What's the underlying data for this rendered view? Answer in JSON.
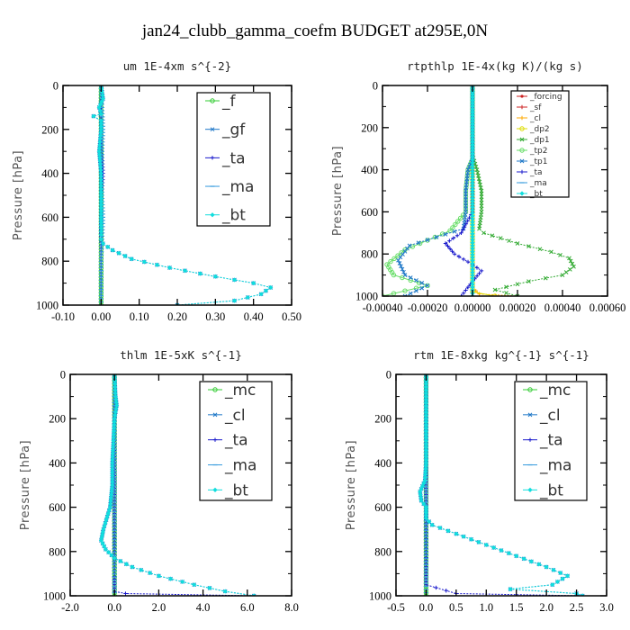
{
  "figure": {
    "title": "jan24_clubb_gamma_coefm  BUDGET at295E,0N"
  },
  "chart_data": [
    {
      "type": "line",
      "title": "um   1E-4xm s^{-2}",
      "ylabel": "Pressure [hPa]",
      "xlim": [
        -0.1,
        0.5
      ],
      "ylim": [
        1000,
        0
      ],
      "xticks": [
        "-0.10",
        "0.00",
        "0.10",
        "0.20",
        "0.30",
        "0.40",
        "0.50"
      ],
      "xtick_values": [
        -0.1,
        0.0,
        0.1,
        0.2,
        0.3,
        0.4,
        0.5
      ],
      "yticks": [
        "0",
        "200",
        "400",
        "600",
        "800",
        "1000"
      ],
      "ytick_values": [
        0,
        200,
        400,
        600,
        800,
        1000
      ],
      "legend_size": "large",
      "series": [
        {
          "name": "_f",
          "color": "#33cc33",
          "marker": "circle",
          "x": [
            0,
            0
          ],
          "y": [
            0,
            1000
          ]
        },
        {
          "name": "_gf",
          "color": "#1f78c8",
          "marker": "cross",
          "x": [
            0.0,
            0.005,
            -0.005,
            0.0,
            -0.02,
            0.0,
            0.0,
            -0.005,
            0.0,
            0.0,
            0.0,
            0.0,
            0.0,
            0.0,
            0.005,
            0.03,
            0.08,
            0.18,
            0.3,
            0.4,
            0.445,
            0.42,
            0.35,
            0.2
          ],
          "y": [
            0,
            60,
            100,
            130,
            140,
            160,
            200,
            300,
            400,
            500,
            600,
            650,
            680,
            700,
            720,
            750,
            790,
            830,
            870,
            900,
            920,
            950,
            980,
            1000
          ]
        },
        {
          "name": "_ta",
          "color": "#1a1acc",
          "marker": "plus",
          "x": [
            0,
            0,
            0.005,
            0,
            0,
            0
          ],
          "y": [
            0,
            200,
            400,
            600,
            800,
            1000
          ]
        },
        {
          "name": "_ma",
          "color": "#3399dd",
          "marker": "dash",
          "x": [
            0,
            0.005,
            0,
            0.005,
            0,
            0
          ],
          "y": [
            0,
            200,
            400,
            600,
            800,
            1000
          ]
        },
        {
          "name": "_bt",
          "color": "#11dddd",
          "marker": "diamond",
          "x": [
            0.0,
            0.005,
            -0.005,
            0.0,
            -0.02,
            0.0,
            0.0,
            -0.005,
            0.0,
            0.0,
            0.0,
            0.0,
            0.0,
            0.0,
            0.005,
            0.03,
            0.08,
            0.18,
            0.3,
            0.4,
            0.445,
            0.42,
            0.35,
            0.2
          ],
          "y": [
            0,
            60,
            100,
            130,
            140,
            160,
            200,
            300,
            400,
            500,
            600,
            650,
            680,
            700,
            720,
            750,
            790,
            830,
            870,
            900,
            920,
            950,
            980,
            1000
          ]
        }
      ]
    },
    {
      "type": "line",
      "title": "rtpthlp   1E-4x(kg K)/(kg s)",
      "ylabel": "Pressure [hPa]",
      "xlim": [
        -0.0004,
        0.0006
      ],
      "ylim": [
        1000,
        0
      ],
      "xticks": [
        "-0.00040",
        "-0.00020",
        "0.00000",
        "0.00020",
        "0.00040",
        "0.00060"
      ],
      "xtick_values": [
        -0.0004,
        -0.0002,
        0.0,
        0.0002,
        0.0004,
        0.0006
      ],
      "yticks": [
        "0",
        "200",
        "400",
        "600",
        "800",
        "1000"
      ],
      "ytick_values": [
        0,
        200,
        400,
        600,
        800,
        1000
      ],
      "legend_size": "small",
      "series": [
        {
          "name": "_forcing",
          "color": "#cc2222",
          "marker": "dot",
          "x": [
            0,
            0
          ],
          "y": [
            0,
            1000
          ]
        },
        {
          "name": "_sf",
          "color": "#cc2222",
          "marker": "plus",
          "x": [
            0,
            0
          ],
          "y": [
            0,
            1000
          ]
        },
        {
          "name": "_cl",
          "color": "#ffaa00",
          "marker": "plus",
          "x": [
            0,
            0,
            0,
            3e-05,
            0.0002
          ],
          "y": [
            0,
            900,
            960,
            990,
            1000
          ]
        },
        {
          "name": "_dp2",
          "color": "#dddd00",
          "marker": "circle",
          "x": [
            0,
            0,
            0.0001
          ],
          "y": [
            0,
            980,
            1000
          ]
        },
        {
          "name": "_dp1",
          "color": "#33aa33",
          "marker": "cross",
          "x": [
            0,
            0,
            2e-05,
            4e-05,
            4e-05,
            3e-05,
            5e-05,
            0.0002,
            0.00035,
            0.00043,
            0.00045,
            0.0004,
            0.00025,
            0.0001,
            0.0002
          ],
          "y": [
            0,
            330,
            400,
            500,
            600,
            680,
            700,
            750,
            790,
            820,
            860,
            900,
            930,
            970,
            1000
          ]
        },
        {
          "name": "_tp2",
          "color": "#66dd66",
          "marker": "circle",
          "x": [
            0,
            0,
            -2e-05,
            -3e-05,
            -3e-05,
            -0.0001,
            -0.0003,
            -0.00038,
            -0.00035,
            -0.0002,
            -0.0004
          ],
          "y": [
            0,
            350,
            400,
            500,
            600,
            690,
            780,
            850,
            900,
            950,
            1000
          ]
        },
        {
          "name": "_tp1",
          "color": "#1f78c8",
          "marker": "cross",
          "x": [
            0,
            0,
            -2e-05,
            -3e-05,
            -3e-05,
            -4e-05,
            -0.00028,
            -0.00033,
            -0.0003,
            -0.0002,
            -0.0003
          ],
          "y": [
            0,
            350,
            400,
            500,
            600,
            680,
            760,
            830,
            900,
            950,
            1000
          ]
        },
        {
          "name": "_ta",
          "color": "#1a1acc",
          "marker": "plus",
          "x": [
            0,
            0,
            -5e-05,
            -0.00012,
            -8e-05,
            0.0,
            4e-05,
            0.0,
            -5e-05
          ],
          "y": [
            0,
            600,
            700,
            750,
            800,
            850,
            880,
            930,
            1000
          ]
        },
        {
          "name": "_ma",
          "color": "#3399dd",
          "marker": "dash",
          "x": [
            0,
            0
          ],
          "y": [
            0,
            1000
          ]
        },
        {
          "name": "_bt",
          "color": "#11dddd",
          "marker": "diamond",
          "x": [
            0,
            0
          ],
          "y": [
            0,
            1000
          ]
        }
      ]
    },
    {
      "type": "line",
      "title": "thlm   1E-5xK s^{-1}",
      "ylabel": "Pressure [hPa]",
      "xlim": [
        -2.0,
        8.0
      ],
      "ylim": [
        1000,
        0
      ],
      "xticks": [
        "-2.0",
        "0.0",
        "2.0",
        "4.0",
        "6.0",
        "8.0"
      ],
      "xtick_values": [
        -2.0,
        0.0,
        2.0,
        4.0,
        6.0,
        8.0
      ],
      "yticks": [
        "0",
        "200",
        "400",
        "600",
        "800",
        "1000"
      ],
      "ytick_values": [
        0,
        200,
        400,
        600,
        800,
        1000
      ],
      "legend_size": "large",
      "series": [
        {
          "name": "_mc",
          "color": "#33cc33",
          "marker": "circle",
          "x": [
            0,
            0
          ],
          "y": [
            0,
            1000
          ]
        },
        {
          "name": "_cl",
          "color": "#1f78c8",
          "marker": "cross",
          "x": [
            0,
            0.05,
            0.1,
            0,
            -0.05,
            -0.1,
            -0.1,
            -0.2,
            -0.5,
            -0.6,
            -0.4,
            0,
            0.8,
            2.0,
            3.6,
            5.0,
            6.3
          ],
          "y": [
            0,
            100,
            140,
            200,
            300,
            400,
            500,
            600,
            700,
            750,
            790,
            830,
            870,
            910,
            950,
            980,
            1000
          ]
        },
        {
          "name": "_ta",
          "color": "#1a1acc",
          "marker": "plus",
          "x": [
            0,
            0,
            0,
            0,
            0,
            0,
            0,
            0,
            0,
            0.5,
            6.3
          ],
          "y": [
            0,
            200,
            400,
            600,
            700,
            800,
            900,
            950,
            980,
            990,
            1000
          ]
        },
        {
          "name": "_ma",
          "color": "#3399dd",
          "marker": "dash",
          "x": [
            0,
            0
          ],
          "y": [
            0,
            1000
          ]
        },
        {
          "name": "_bt",
          "color": "#11dddd",
          "marker": "diamond",
          "x": [
            0,
            0.05,
            0.1,
            0,
            -0.05,
            -0.1,
            -0.1,
            -0.2,
            -0.5,
            -0.6,
            -0.4,
            0,
            0.8,
            2.0,
            3.6,
            5.0,
            6.3
          ],
          "y": [
            0,
            100,
            140,
            200,
            300,
            400,
            500,
            600,
            700,
            750,
            790,
            830,
            870,
            910,
            950,
            980,
            1000
          ]
        }
      ]
    },
    {
      "type": "line",
      "title": "rtm   1E-8xkg kg^{-1} s^{-1}",
      "ylabel": "Pressure [hPa]",
      "xlim": [
        -0.5,
        3.0
      ],
      "ylim": [
        1000,
        0
      ],
      "xticks": [
        "-0.5",
        "0.0",
        "0.5",
        "1.0",
        "1.5",
        "2.0",
        "2.5",
        "3.0"
      ],
      "xtick_values": [
        -0.5,
        0.0,
        0.5,
        1.0,
        1.5,
        2.0,
        2.5,
        3.0
      ],
      "yticks": [
        "0",
        "200",
        "400",
        "600",
        "800",
        "1000"
      ],
      "ytick_values": [
        0,
        200,
        400,
        600,
        800,
        1000
      ],
      "legend_size": "large",
      "series": [
        {
          "name": "_mc",
          "color": "#33cc33",
          "marker": "circle",
          "x": [
            0,
            0
          ],
          "y": [
            0,
            1000
          ]
        },
        {
          "name": "_cl",
          "color": "#1f78c8",
          "marker": "cross",
          "x": [
            0,
            0,
            0,
            -0.02,
            -0.1,
            -0.08,
            0,
            0,
            0.1,
            0.5,
            1.0,
            1.5,
            2.0,
            2.35,
            2.1,
            1.4,
            2.5,
            2.6
          ],
          "y": [
            0,
            200,
            400,
            480,
            530,
            570,
            600,
            650,
            680,
            720,
            770,
            820,
            870,
            910,
            950,
            970,
            990,
            1000
          ]
        },
        {
          "name": "_ta",
          "color": "#1a1acc",
          "marker": "plus",
          "x": [
            0,
            0,
            0,
            0,
            0,
            0,
            0.5,
            2.6
          ],
          "y": [
            0,
            200,
            400,
            600,
            800,
            950,
            990,
            1000
          ]
        },
        {
          "name": "_ma",
          "color": "#3399dd",
          "marker": "dash",
          "x": [
            0,
            0
          ],
          "y": [
            0,
            1000
          ]
        },
        {
          "name": "_bt",
          "color": "#11dddd",
          "marker": "diamond",
          "x": [
            0,
            0,
            0,
            -0.02,
            -0.1,
            -0.08,
            0,
            0,
            0.1,
            0.5,
            1.0,
            1.5,
            2.0,
            2.35,
            2.1,
            1.4,
            2.5,
            2.6
          ],
          "y": [
            0,
            200,
            400,
            480,
            530,
            570,
            600,
            650,
            680,
            720,
            770,
            820,
            870,
            910,
            950,
            970,
            990,
            1000
          ]
        }
      ]
    }
  ]
}
